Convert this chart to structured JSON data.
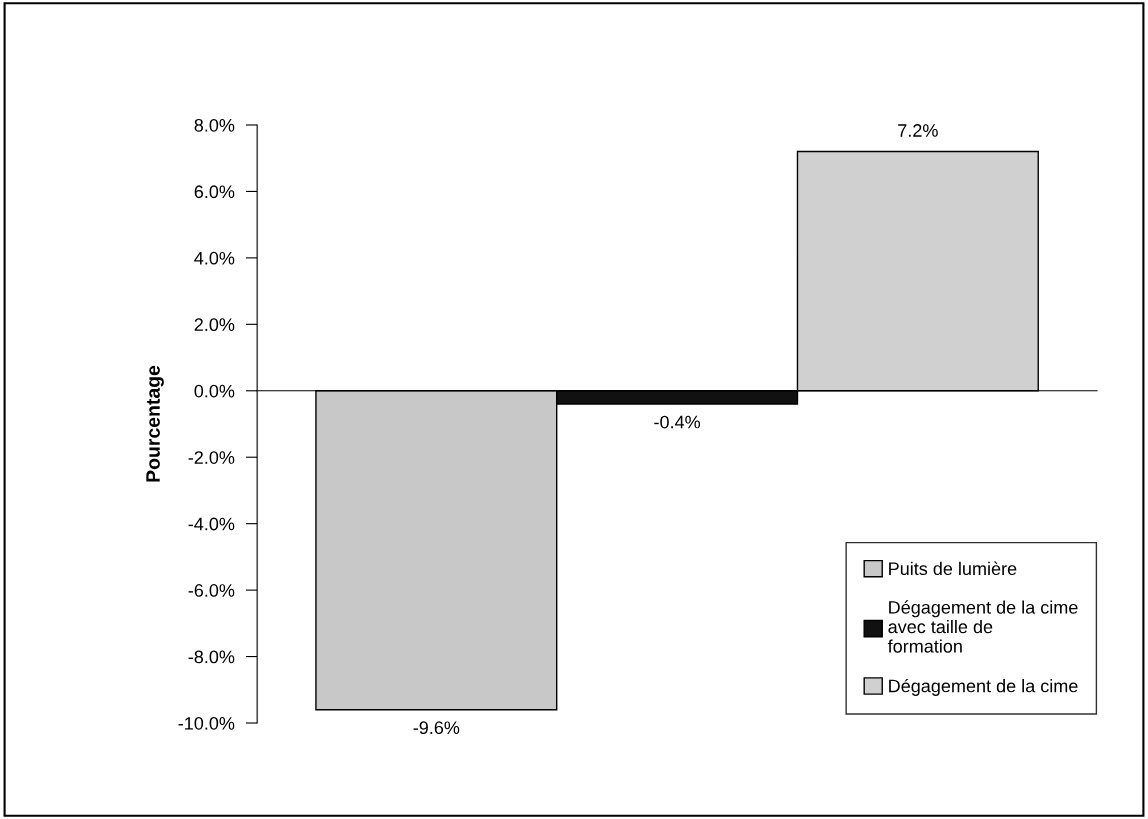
{
  "chart_data": {
    "type": "bar",
    "ylabel": "Pourcentage",
    "categories": [
      null
    ],
    "series": [
      {
        "name": "Puits de lumière",
        "color": "#c8c8c8",
        "values": [
          -9.6
        ],
        "value_labels": [
          "-9.6%"
        ]
      },
      {
        "name": "Dégagement de la cime avec taille de formation",
        "color": "#111111",
        "values": [
          -0.4
        ],
        "value_labels": [
          "-0.4%"
        ]
      },
      {
        "name": "Dégagement de la cime",
        "color": "#d0d0d0",
        "values": [
          7.2
        ],
        "value_labels": [
          "7.2%"
        ]
      }
    ],
    "ylim": [
      -10,
      8
    ],
    "yticks": [
      {
        "value": -10,
        "label": "-10.0%"
      },
      {
        "value": -8,
        "label": "-8.0%"
      },
      {
        "value": -6,
        "label": "-6.0%"
      },
      {
        "value": -4,
        "label": "-4.0%"
      },
      {
        "value": -2,
        "label": "-2.0%"
      },
      {
        "value": 0,
        "label": "0.0%"
      },
      {
        "value": 2,
        "label": "2.0%"
      },
      {
        "value": 4,
        "label": "4.0%"
      },
      {
        "value": 6,
        "label": "6.0%"
      },
      {
        "value": 8,
        "label": "8.0%"
      }
    ],
    "legend": "bottom right"
  }
}
